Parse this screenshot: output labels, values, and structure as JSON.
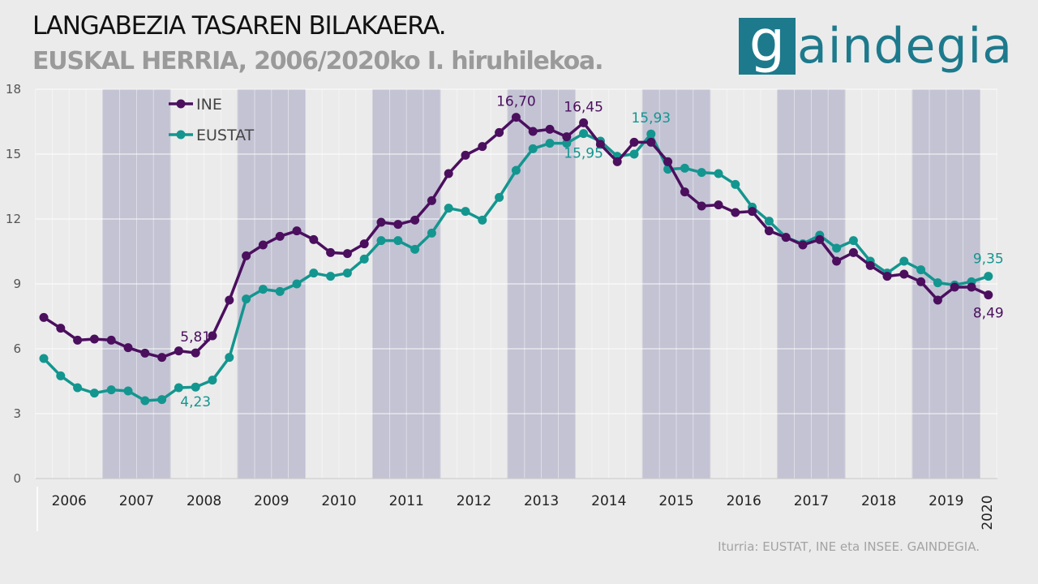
{
  "header": {
    "title": "LANGABEZIA TASAREN BILAKAERA.",
    "subtitle": "EUSKAL HERRIA, 2006/2020ko I. hiruhilekoa."
  },
  "logo": {
    "initial": "g",
    "rest": "aindegia",
    "color": "#1d7a8c"
  },
  "source": "Iturria: EUSTAT, INE eta INSEE. GAINDEGIA.",
  "chart_data": {
    "type": "line",
    "ylim": [
      0,
      18
    ],
    "yticks": [
      "0",
      "3",
      "6",
      "9",
      "12",
      "15",
      "18"
    ],
    "ytick_values": [
      0,
      3,
      6,
      9,
      12,
      15,
      18
    ],
    "year_labels": [
      "2006",
      "2007",
      "2008",
      "2009",
      "2010",
      "2011",
      "2012",
      "2013",
      "2014",
      "2015",
      "2016",
      "2017",
      "2018",
      "2019",
      "2020"
    ],
    "shaded_years": [
      "2007",
      "2009",
      "2011",
      "2013",
      "2015",
      "2017",
      "2019"
    ],
    "grid": true,
    "legend_position": "top-left",
    "series": [
      {
        "name": "INE",
        "color": "#4b0f5e",
        "values": [
          7.45,
          6.95,
          6.4,
          6.45,
          6.4,
          6.05,
          5.8,
          5.6,
          5.9,
          5.81,
          6.6,
          8.25,
          10.3,
          10.8,
          11.2,
          11.45,
          11.05,
          10.45,
          10.4,
          10.85,
          11.85,
          11.75,
          11.95,
          12.85,
          14.1,
          14.95,
          15.35,
          16.0,
          16.7,
          16.05,
          16.15,
          15.8,
          16.45,
          15.45,
          14.65,
          15.55,
          15.55,
          14.65,
          13.25,
          12.6,
          12.65,
          12.3,
          12.35,
          11.45,
          11.15,
          10.8,
          11.05,
          10.05,
          10.45,
          9.85,
          9.35,
          9.45,
          9.1,
          8.25,
          8.85,
          8.85,
          8.49
        ]
      },
      {
        "name": "EUSTAT",
        "color": "#13968f",
        "values": [
          5.55,
          4.75,
          4.2,
          3.95,
          4.1,
          4.05,
          3.6,
          3.65,
          4.2,
          4.23,
          4.55,
          5.6,
          8.3,
          8.75,
          8.65,
          9.0,
          9.5,
          9.35,
          9.5,
          10.15,
          11.0,
          11.0,
          10.6,
          11.35,
          12.5,
          12.35,
          11.95,
          13.0,
          14.25,
          15.25,
          15.5,
          15.5,
          15.95,
          15.6,
          14.9,
          15.0,
          15.93,
          14.3,
          14.35,
          14.15,
          14.1,
          13.6,
          12.55,
          11.9,
          11.15,
          10.85,
          11.25,
          10.65,
          11.0,
          10.05,
          9.5,
          10.05,
          9.65,
          9.05,
          8.95,
          9.1,
          9.35
        ]
      }
    ],
    "annotations": [
      {
        "series": "INE",
        "index": 9,
        "label": "5,81",
        "color": "#4b0f5e"
      },
      {
        "series": "EUSTAT",
        "index": 9,
        "label": "4,23",
        "color": "#13968f"
      },
      {
        "series": "INE",
        "index": 28,
        "label": "16,70",
        "color": "#4b0f5e"
      },
      {
        "series": "INE",
        "index": 32,
        "label": "16,45",
        "color": "#4b0f5e"
      },
      {
        "series": "EUSTAT",
        "index": 32,
        "label": "15,95",
        "color": "#13968f"
      },
      {
        "series": "EUSTAT",
        "index": 36,
        "label": "15,93",
        "color": "#13968f"
      },
      {
        "series": "EUSTAT",
        "index": 56,
        "label": "9,35",
        "color": "#13968f"
      },
      {
        "series": "INE",
        "index": 56,
        "label": "8,49",
        "color": "#4b0f5e"
      }
    ]
  }
}
